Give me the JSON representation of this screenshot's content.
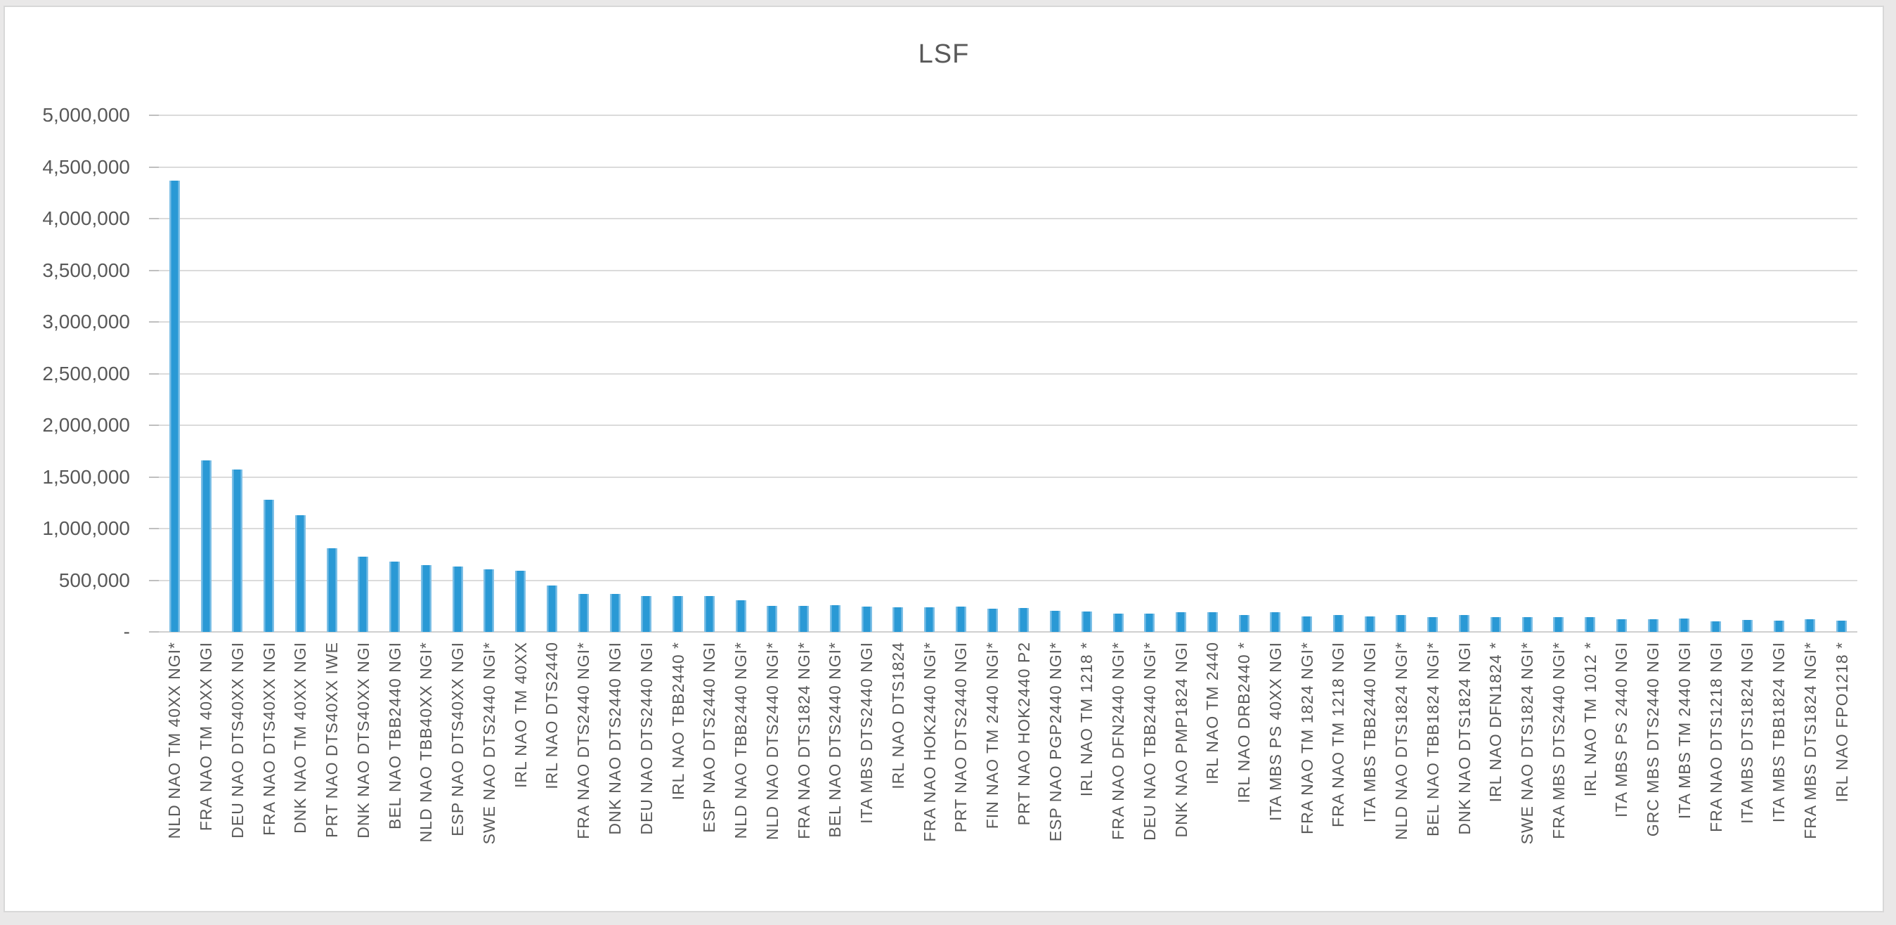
{
  "page": {
    "background_color": "#e9e8e8",
    "chart_background": "#ffffff",
    "chart_border_color": "#d8d8d8",
    "text_color": "#595959"
  },
  "chart_data": {
    "type": "bar",
    "title": "LSF",
    "xlabel": "",
    "ylabel": "",
    "ylim": [
      0,
      5000000
    ],
    "ytick_interval": 500000,
    "ytick_labels": [
      "-",
      "500,000",
      "1,000,000",
      "1,500,000",
      "2,000,000",
      "2,500,000",
      "3,000,000",
      "3,500,000",
      "4,000,000",
      "4,500,000",
      "5,000,000"
    ],
    "grid": true,
    "legend_position": "none",
    "bar_color": "#2a99d5",
    "bar_edge_color": "#7cbfe6",
    "grid_color": "#dbdbdb",
    "axis_color": "#bfbfbf",
    "categories": [
      "NLD NAO TM 40XX NGI*",
      "FRA NAO TM 40XX NGI",
      "DEU NAO DTS40XX NGI",
      "FRA NAO DTS40XX NGI",
      "DNK NAO TM 40XX NGI",
      "PRT NAO DTS40XX IWE",
      "DNK NAO DTS40XX NGI",
      "BEL NAO TBB2440 NGI",
      "NLD NAO TBB40XX NGI*",
      "ESP NAO DTS40XX NGI",
      "SWE NAO DTS2440 NGI*",
      "IRL NAO TM 40XX",
      "IRL NAO DTS2440",
      "FRA NAO DTS2440 NGI*",
      "DNK NAO DTS2440 NGI",
      "DEU NAO DTS2440 NGI",
      "IRL NAO TBB2440 *",
      "ESP NAO DTS2440 NGI",
      "NLD NAO TBB2440 NGI*",
      "NLD NAO DTS2440 NGI*",
      "FRA NAO DTS1824 NGI*",
      "BEL NAO DTS2440 NGI*",
      "ITA MBS DTS2440 NGI",
      "IRL NAO DTS1824",
      "FRA NAO HOK2440 NGI*",
      "PRT NAO DTS2440 NGI",
      "FIN NAO TM 2440 NGI*",
      "PRT NAO HOK2440 P2",
      "ESP NAO PGP2440 NGI*",
      "IRL NAO TM 1218 *",
      "FRA NAO DFN2440 NGI*",
      "DEU NAO TBB2440 NGI*",
      "DNK NAO PMP1824 NGI",
      "IRL NAO TM 2440",
      "IRL NAO DRB2440 *",
      "ITA MBS PS 40XX NGI",
      "FRA NAO TM 1824 NGI*",
      "FRA NAO TM 1218 NGI",
      "ITA MBS TBB2440 NGI",
      "NLD NAO DTS1824 NGI*",
      "BEL NAO TBB1824 NGI*",
      "DNK NAO DTS1824 NGI",
      "IRL NAO DFN1824 *",
      "SWE NAO DTS1824 NGI*",
      "FRA MBS DTS2440 NGI*",
      "IRL NAO TM 1012 *",
      "ITA MBS PS 2440 NGI",
      "GRC MBS DTS2440 NGI",
      "ITA MBS TM 2440 NGI",
      "FRA NAO DTS1218 NGI",
      "ITA MBS DTS1824 NGI",
      "ITA MBS TBB1824 NGI",
      "FRA MBS DTS1824 NGI*",
      "IRL NAO FPO1218 *"
    ],
    "values": [
      4365000,
      1660000,
      1570000,
      1280000,
      1130000,
      810000,
      725000,
      680000,
      645000,
      630000,
      605000,
      590000,
      450000,
      370000,
      365000,
      350000,
      345000,
      345000,
      305000,
      255000,
      255000,
      260000,
      245000,
      235000,
      240000,
      245000,
      225000,
      230000,
      205000,
      195000,
      180000,
      180000,
      190000,
      190000,
      160000,
      190000,
      150000,
      165000,
      150000,
      160000,
      145000,
      160000,
      140000,
      145000,
      140000,
      140000,
      125000,
      125000,
      130000,
      105000,
      115000,
      110000,
      120000,
      110000
    ]
  }
}
